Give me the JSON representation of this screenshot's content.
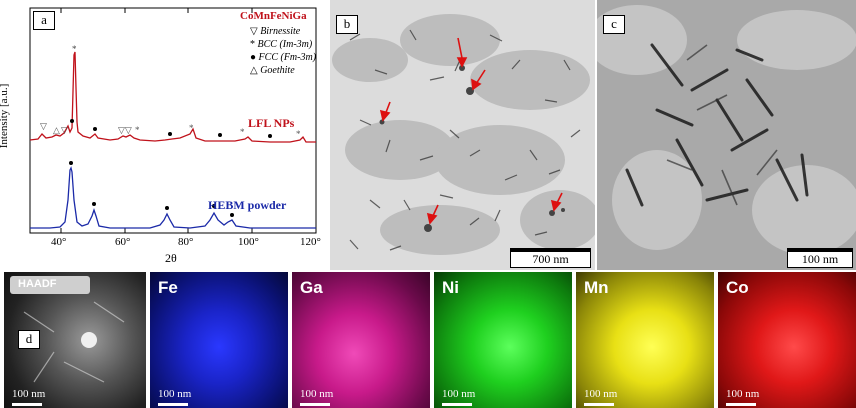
{
  "panel_a": {
    "label": "a",
    "alloy": "CoMnFeNiGa",
    "legend": [
      {
        "symbol": "▽",
        "text": "Birnessite",
        "italic": true
      },
      {
        "symbol": "*",
        "text": "BCC (Im-3m)",
        "italic": true,
        "italic_part": "BCC"
      },
      {
        "symbol": "●",
        "text": "FCC (Fm-3m)",
        "italic": true,
        "italic_part": "FCC"
      },
      {
        "symbol": "△",
        "text": "Goethite",
        "italic": true
      }
    ],
    "curve_top_label": "LFL NPs",
    "curve_bottom_label": "HEBM powder",
    "ylabel": "Intensity [a.u.]",
    "xlabel": "2θ",
    "xticks": [
      "40°",
      "60°",
      "80°",
      "100°",
      "120°"
    ],
    "colors": {
      "lfl": "#c0121b",
      "hebm": "#1b2aa8"
    }
  },
  "panel_b": {
    "label": "b",
    "scalebar": "700 nm"
  },
  "panel_c": {
    "label": "c",
    "scalebar": "100 nm"
  },
  "panel_d": {
    "label": "d",
    "maps": [
      {
        "name": "HAADF",
        "scale": "100 nm",
        "color": "#c8c8c8"
      },
      {
        "name": "Fe",
        "scale": "100 nm",
        "color": "#1a24e0"
      },
      {
        "name": "Ga",
        "scale": "100 nm",
        "color": "#e01a9a"
      },
      {
        "name": "Ni",
        "scale": "100 nm",
        "color": "#1fd01f"
      },
      {
        "name": "Mn",
        "scale": "100 nm",
        "color": "#e8e015"
      },
      {
        "name": "Co",
        "scale": "100 nm",
        "color": "#e01818"
      }
    ]
  }
}
